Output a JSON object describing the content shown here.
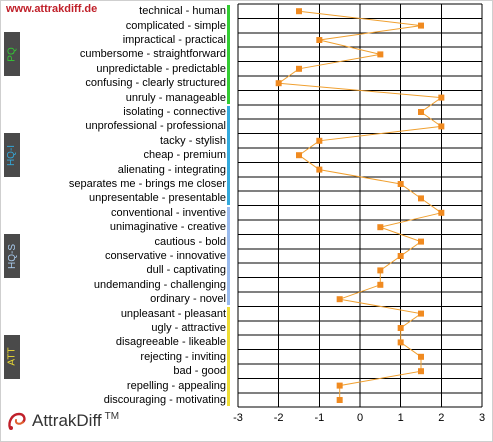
{
  "url_text": "www.attrakdiff.de",
  "logo": {
    "text": "AttrakDiff",
    "trademark": "TM",
    "icon": "attrakdiff-swirl-icon"
  },
  "colors": {
    "url": "#c0202a",
    "line": "#f0a030",
    "marker": "#f08a20",
    "grid": "#000000",
    "pq": "#33cc33",
    "hqi": "#33aadd",
    "hqs": "#99bbee",
    "att": "#eedd33"
  },
  "groups": [
    {
      "id": "pq",
      "label": "PQ",
      "label_color": "#33cc33",
      "bar_color": "#33cc33",
      "start": 0,
      "count": 7
    },
    {
      "id": "hqi",
      "label": "HQ-I",
      "label_color": "#33aadd",
      "bar_color": "#33aadd",
      "start": 7,
      "count": 7
    },
    {
      "id": "hqs",
      "label": "HQ-S",
      "label_color": "#aaccee",
      "bar_color": "#99bbee",
      "start": 14,
      "count": 7
    },
    {
      "id": "att",
      "label": "ATT",
      "label_color": "#eedd33",
      "bar_color": "#eedd33",
      "start": 21,
      "count": 7
    }
  ],
  "chart_data": {
    "type": "line",
    "title": "",
    "xlabel": "",
    "ylabel": "",
    "xlim": [
      -3,
      3
    ],
    "xticks": [
      "-3",
      "-2",
      "-1",
      "0",
      "1",
      "2",
      "3"
    ],
    "grid": true,
    "categories": [
      "technical - human",
      "complicated - simple",
      "impractical - practical",
      "cumbersome - straightforward",
      "unpredictable - predictable",
      "confusing - clearly structured",
      "unruly - manageable",
      "isolating - connective",
      "unprofessional - professional",
      "tacky - stylish",
      "cheap - premium",
      "alienating - integrating",
      "separates me - brings me closer",
      "unpresentable - presentable",
      "conventional - inventive",
      "unimaginative - creative",
      "cautious - bold",
      "conservative - innovative",
      "dull - captivating",
      "undemanding - challenging",
      "ordinary - novel",
      "unpleasant - pleasant",
      "ugly - attractive",
      "disagreeable - likeable",
      "rejecting - inviting",
      "bad - good",
      "repelling - appealing",
      "discouraging - motivating"
    ],
    "series": [
      {
        "values": [
          -1.5,
          1.5,
          -1.0,
          0.5,
          -1.5,
          -2.0,
          2.0,
          1.5,
          2.0,
          -1.0,
          -1.5,
          -1.0,
          1.0,
          1.5,
          2.0,
          0.5,
          1.5,
          1.0,
          0.5,
          0.5,
          -0.5,
          1.5,
          1.0,
          1.0,
          1.5,
          1.5,
          -0.5,
          -0.5
        ]
      }
    ]
  }
}
